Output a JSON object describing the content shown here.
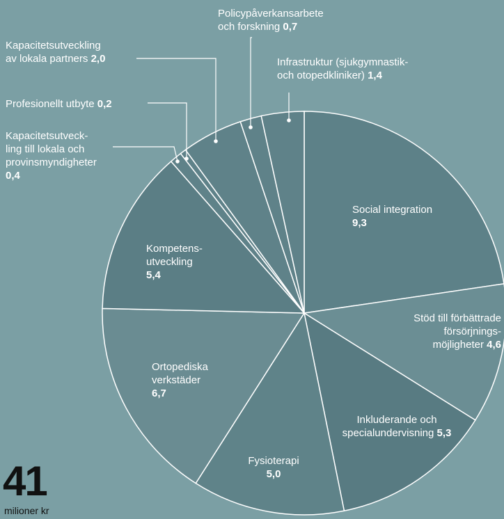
{
  "chart_data": {
    "type": "pie",
    "categories": [
      "Social integration",
      "Stöd till förbättrade\nförsörjnings-\nmöjligheter",
      "Inkluderande och\nspecialundervisning",
      "Fysioterapi",
      "Ortopediska\nverkstäder",
      "Kompetens-\nutveckling",
      "Kapacitetsutveck-\nling till lokala och\nprovinsmyndigheter",
      "Profesionellt utbyte",
      "Kapacitetsutveckling\nav lokala partners",
      "Policypåverkansarbete\noch forskning",
      "Infrastruktur (sjukgymnastik-\noch otopedkliniker)"
    ],
    "values": [
      9.3,
      4.6,
      5.3,
      5.0,
      6.7,
      5.4,
      0.4,
      0.2,
      2.0,
      0.7,
      1.4
    ],
    "value_labels": [
      "9,3",
      "4,6",
      "5,3",
      "5,0",
      "6,7",
      "5,4",
      "0,4",
      "0,2",
      "2,0",
      "0,7",
      "1,4"
    ],
    "colors": [
      "#5d8188",
      "#6b8e94",
      "#587b82",
      "#5f8389",
      "#6a8c92",
      "#5b7e85",
      "#5f8289",
      "#5f8289",
      "#5f8289",
      "#5f8289",
      "#5f8289"
    ],
    "total": 41,
    "unit": "milioner kr"
  }
}
